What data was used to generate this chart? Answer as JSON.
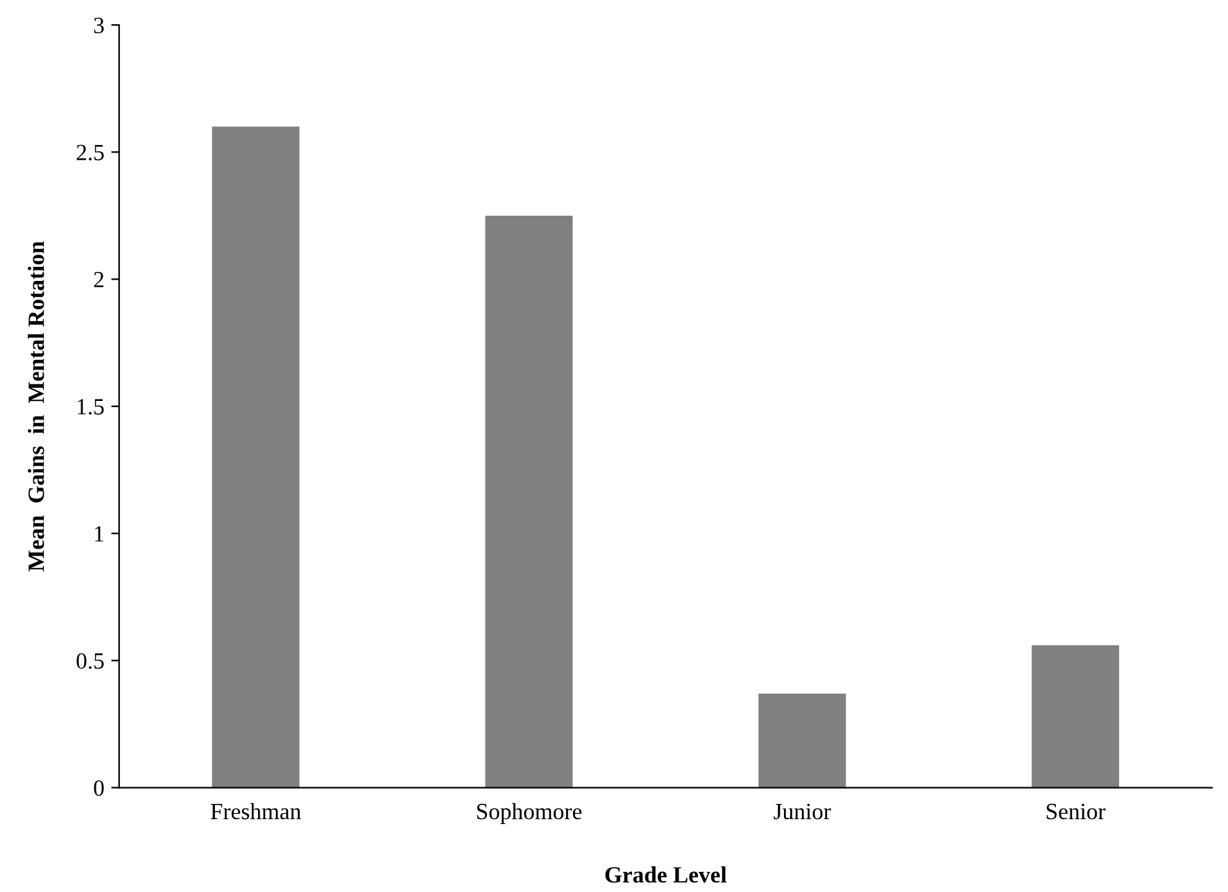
{
  "chart_data": {
    "type": "bar",
    "xlabel": "Grade Level",
    "ylabel": "Mean  Gains  in  Mental Rotation",
    "categories": [
      "Freshman",
      "Sophomore",
      "Junior",
      "Senior"
    ],
    "values": [
      2.6,
      2.25,
      0.37,
      0.56
    ],
    "color": "#808080",
    "ylim": [
      0,
      3
    ],
    "yticks": [
      0,
      0.5,
      1,
      1.5,
      2,
      2.5,
      3
    ],
    "grid": false
  }
}
